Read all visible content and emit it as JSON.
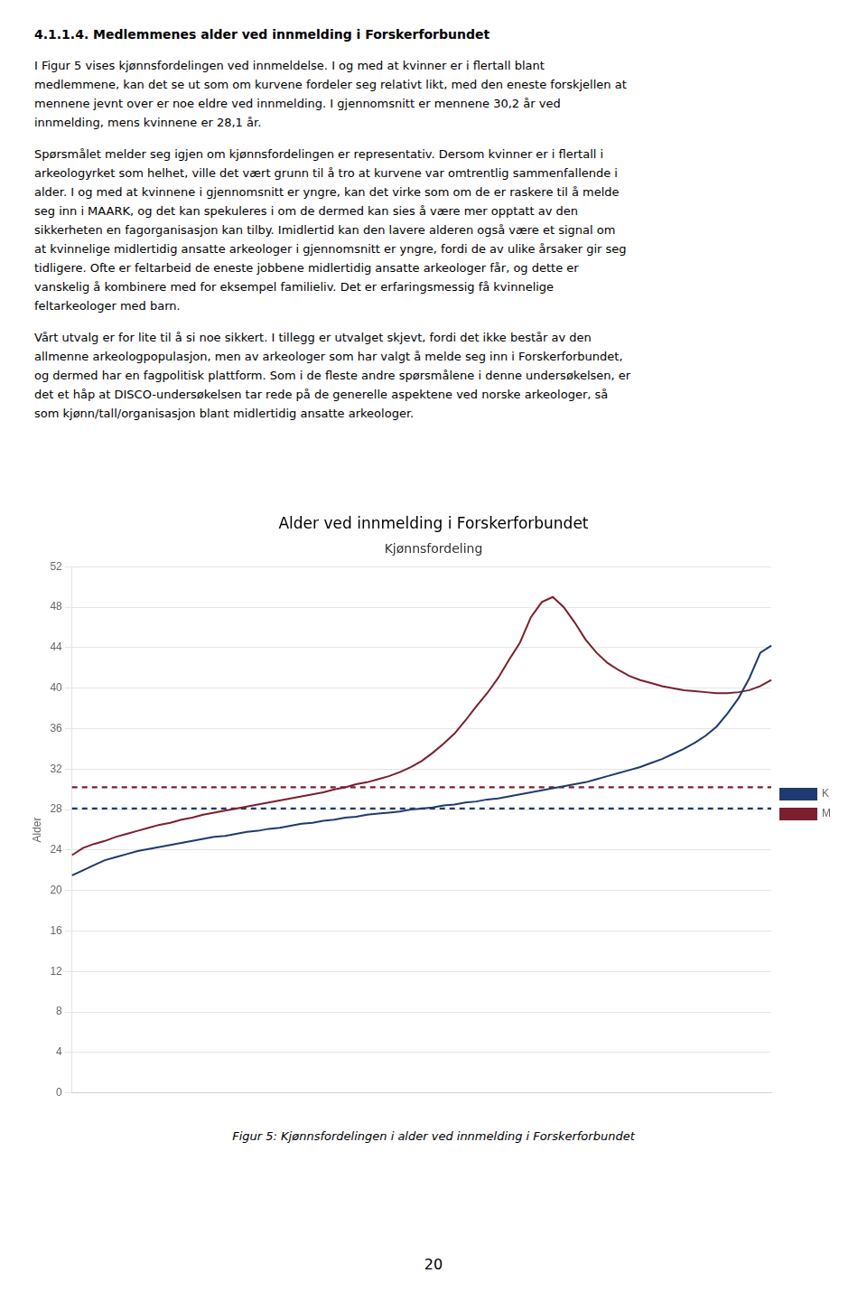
{
  "header": "4.1.1.4. Medlemmenes alder ved innmelding i Forskerforbundet",
  "paragraphs": [
    [
      "I Figur 5 vises kjønnsfordelingen ved innmeldelse. I og med at kvinner er i flertall blant",
      "medlemmene, kan det se ut som om kurvene fordeler seg relativt likt, med den eneste forskjellen at",
      "mennene jevnt over er noe eldre ved innmelding. I gjennomsnitt er mennene 30,2 år ved",
      "innmelding, mens kvinnene er 28,1 år."
    ],
    [
      "Spørsmålet melder seg igjen om kjønnsfordelingen er representativ. Dersom kvinner er i flertall i",
      "arkeologyrket som helhet, ville det vært grunn til å tro at kurvene var omtrentlig sammenfallende i",
      "alder. I og med at kvinnene i gjennomsnitt er yngre, kan det virke som om de er raskere til å melde",
      "seg inn i MAARK, og det kan spekuleres i om de dermed kan sies å være mer opptatt av den",
      "sikkerheten en fagorganisasjon kan tilby. Imidlertid kan den lavere alderen også være et signal om",
      "at kvinnelige midlertidig ansatte arkeologer i gjennomsnitt er yngre, fordi de av ulike årsaker gir seg",
      "tidligere. Ofte er feltarbeid de eneste jobbene midlertidig ansatte arkeologer får, og dette er",
      "vanskelig å kombinere med for eksempel familieliv. Det er erfaringsmessig få kvinnelige",
      "feltarkeologer med barn."
    ],
    [
      "Vårt utvalg er for lite til å si noe sikkert. I tillegg er utvalget skjevt, fordi det ikke består av den",
      "allmenne arkeologpopulasjon, men av arkeologer som har valgt å melde seg inn i Forskerforbundet,",
      "og dermed har en fagpolitisk plattform. Som i de fleste andre spørsmålene i denne undersøkelsen, er",
      "det et håp at DISCO-undersøkelsen tar rede på de generelle aspektene ved norske arkeologer, så",
      "som kjønn/tall/organisasjon blant midlertidig ansatte arkeologer."
    ]
  ],
  "caption": "Figur 5: Kjønnsfordelingen i alder ved innmelding i Forskerforbundet",
  "page_number": "20",
  "chart_data": {
    "type": "line",
    "title": "Alder ved innmelding i Forskerforbundet",
    "subtitle": "Kjønnsfordeling",
    "ylabel": "Alder",
    "categories": [
      null,
      null,
      null,
      null,
      null,
      null,
      null,
      null,
      null,
      null,
      null,
      null,
      null,
      null,
      null,
      null,
      null,
      null,
      null,
      null,
      null,
      null,
      null,
      null,
      null,
      null,
      null,
      null,
      null,
      null,
      null,
      null,
      null,
      null,
      null,
      null,
      null,
      null,
      null,
      null,
      null,
      null,
      null,
      null,
      null,
      null,
      null,
      null,
      null,
      null,
      null,
      null,
      null,
      null,
      null,
      null,
      null,
      null,
      null,
      null,
      null,
      null,
      null,
      null,
      null
    ],
    "series": [
      {
        "name": "K",
        "color": "#1F3A6E",
        "mean": 28.1,
        "values": [
          21.5,
          22.0,
          22.5,
          23.0,
          23.3,
          23.6,
          23.9,
          24.1,
          24.3,
          24.5,
          24.7,
          24.9,
          25.1,
          25.3,
          25.4,
          25.6,
          25.8,
          25.9,
          26.1,
          26.2,
          26.4,
          26.6,
          26.7,
          26.9,
          27.0,
          27.2,
          27.3,
          27.5,
          27.6,
          27.7,
          27.8,
          28.0,
          28.1,
          28.2,
          28.4,
          28.5,
          28.7,
          28.8,
          29.0,
          29.1,
          29.3,
          29.5,
          29.7,
          29.9,
          30.1,
          30.3,
          30.5,
          30.7,
          31.0,
          31.3,
          31.6,
          31.9,
          32.2,
          32.6,
          33.0,
          33.5,
          34.0,
          34.6,
          35.3,
          36.2,
          37.5,
          39.0,
          41.0,
          43.5,
          44.2
        ]
      },
      {
        "name": "M",
        "color": "#7B1F2E",
        "mean": 30.2,
        "values": [
          23.5,
          24.2,
          24.6,
          24.9,
          25.3,
          25.6,
          25.9,
          26.2,
          26.5,
          26.7,
          27.0,
          27.2,
          27.5,
          27.7,
          27.9,
          28.1,
          28.3,
          28.5,
          28.7,
          28.9,
          29.1,
          29.3,
          29.5,
          29.7,
          30.0,
          30.2,
          30.5,
          30.7,
          31.0,
          31.3,
          31.7,
          32.2,
          32.8,
          33.6,
          34.5,
          35.5,
          36.8,
          38.2,
          39.5,
          41.0,
          42.8,
          44.5,
          47.0,
          48.5,
          49.0,
          48.0,
          46.5,
          44.8,
          43.5,
          42.5,
          41.8,
          41.2,
          40.8,
          40.5,
          40.2,
          40.0,
          39.8,
          39.7,
          39.6,
          39.5,
          39.5,
          39.6,
          39.8,
          40.2,
          40.8
        ]
      }
    ],
    "ylim": [
      0,
      52
    ],
    "yticks": [
      0,
      4,
      8,
      12,
      16,
      20,
      24,
      28,
      32,
      36,
      40,
      44,
      48,
      52
    ],
    "grid": "y",
    "legend": "right",
    "tick_labels": "y"
  }
}
